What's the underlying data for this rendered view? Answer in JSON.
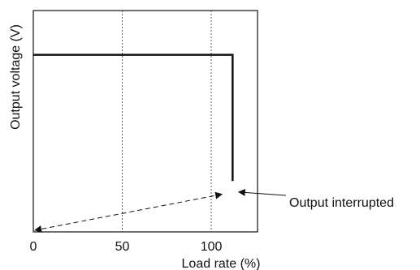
{
  "chart_data": {
    "type": "line",
    "xlabel": "Load rate (%)",
    "ylabel": "Output voltage (V)",
    "x_ticks": [
      0,
      50,
      100
    ],
    "xlim": [
      0,
      126
    ],
    "ylim": [
      0,
      1
    ],
    "y_ticks_labeled": false,
    "grid": "vertical dashed at 50 and 100",
    "series": [
      {
        "x": [
          0,
          112,
          112
        ],
        "y": [
          0.8,
          0.8,
          0.23
        ],
        "style": "solid"
      }
    ],
    "dashed_arrow": {
      "from": [
        106,
        0.17
      ],
      "to": [
        0,
        0
      ]
    },
    "annotation": {
      "text": "Output interrupted",
      "points_to": [
        114,
        0.18
      ]
    },
    "colors": {
      "line": "#111111",
      "grid": "#555555"
    }
  }
}
